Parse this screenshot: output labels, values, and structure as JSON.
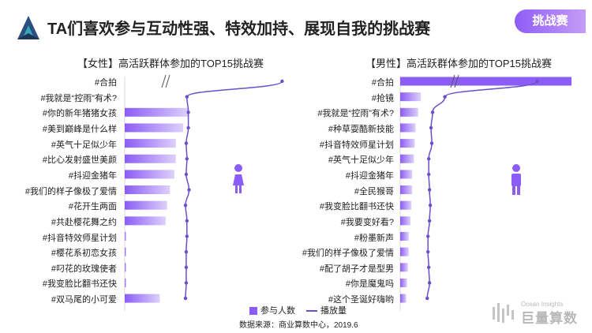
{
  "header": {
    "title": "TA们喜欢参与互动性强、特效加持、展现自我的挑战赛",
    "badge": "挑战赛"
  },
  "legend": {
    "bar": "参与人数",
    "line": "播放量"
  },
  "source": "数据来源：商业算数中心，2019.6",
  "brand": {
    "sub": "Ocean Insights",
    "main": "巨量算数"
  },
  "colors": {
    "bar": "#8b5cf6",
    "bar_light": "#ddd0fb",
    "line": "#6b4fc9",
    "person": "#8b5cf6"
  },
  "chart_data": [
    {
      "type": "bar",
      "title": "【女性】高活跃群体参加的TOP15挑战赛",
      "categories": [
        "#合拍",
        "#我就是“控雨”有术?",
        "#你的新年猪猪女孩",
        "#美到巅峰是什么样",
        "#英气十足似少年",
        "#比心发射盛世美颜",
        "#抖迎金猪年",
        "#我们的样子像极了爱情",
        "#花开生两面",
        "#共赴樱花舞之约",
        "#抖音特效师星计划",
        "#樱花系初恋女孩",
        "#叼花的玫瑰使者",
        "#我变脸比翻书还快",
        "#双马尾的小可爱"
      ],
      "series": [
        {
          "name": "参与人数",
          "type": "bar",
          "values": [
            0,
            0,
            2.2,
            2.0,
            1.75,
            1.75,
            1.7,
            1.55,
            1.45,
            1.4,
            0.05,
            0.05,
            0.05,
            0.05,
            1.2
          ]
        },
        {
          "name": "播放量",
          "type": "line",
          "values": [
            9.6,
            2.9,
            3.0,
            3.0,
            2.85,
            2.9,
            2.85,
            3.05,
            2.8,
            2.9,
            2.9,
            2.85,
            2.85,
            2.85,
            2.8
          ]
        }
      ],
      "axis_break": true
    },
    {
      "type": "bar",
      "title": "【男性】高活跃群体参加的TOP15挑战赛",
      "categories": [
        "#合拍",
        "#抢镜",
        "#我就是“控雨”有术?",
        "#种草耍酷新技能",
        "#抖音特效师星计划",
        "#英气十足似少年",
        "#抖迎金猪年",
        "#全民猴哥",
        "#我变脸比翻书还快",
        "#我要变好看?",
        "#粉墨新声",
        "#我们的样子像极了爱情",
        "#配了胡子才是型男",
        "#你是魔鬼吗",
        "#这个圣诞好嗨哟"
      ],
      "series": [
        {
          "name": "参与人数",
          "type": "bar",
          "values": [
            10,
            1.2,
            1.05,
            0.9,
            0.85,
            0.8,
            0.7,
            0.7,
            0.65,
            0.6,
            0.5,
            0.5,
            0.45,
            0.4,
            0.35
          ]
        },
        {
          "name": "播放量",
          "type": "line",
          "values": [
            9.5,
            3.5,
            2.7,
            2.6,
            2.65,
            2.45,
            2.45,
            2.5,
            2.55,
            2.5,
            2.4,
            2.4,
            2.45,
            2.5,
            2.35
          ]
        }
      ],
      "axis_break": true
    }
  ]
}
